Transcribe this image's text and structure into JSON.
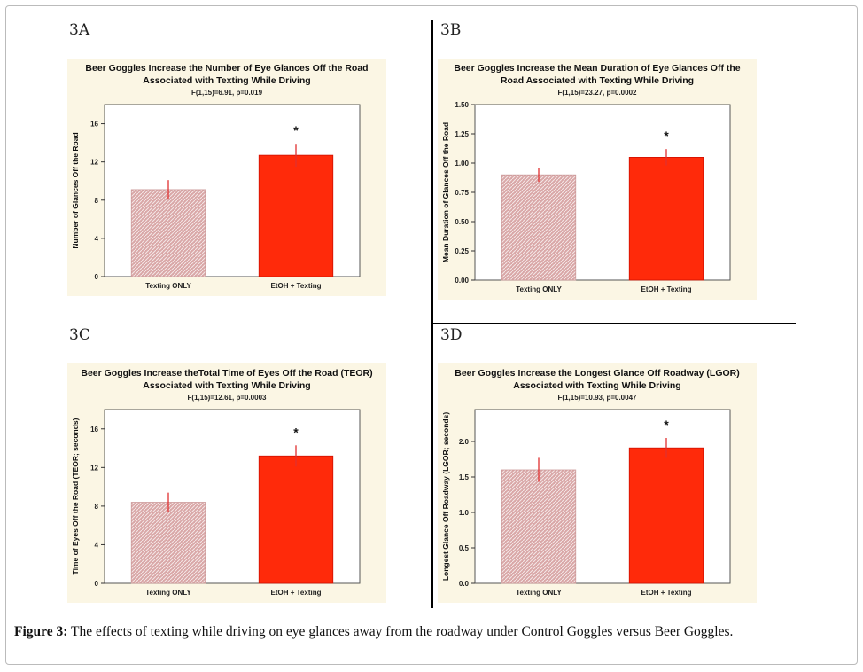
{
  "figure": {
    "caption_label": "Figure 3:",
    "caption_text": " The effects of texting while driving on eye glances away from the roadway under Control Goggles versus Beer Goggles."
  },
  "colors": {
    "panel_bg": "#fbf6e4",
    "control_bar": "#d9a7a7",
    "beer_bar": "#ff2a0a",
    "error_bar": "#e03030"
  },
  "chart_data": [
    {
      "panel": "3A",
      "type": "bar",
      "title_lines": [
        "Beer Goggles Increase the Number of Eye Glances Off the Road",
        "Associated with Texting While Driving"
      ],
      "stat": "F(1,15)=6.91, p=0.019",
      "ylabel": "Number of Glances Off the Road",
      "categories": [
        "Texting ONLY",
        "EtOH + Texting"
      ],
      "values": [
        9.1,
        12.7
      ],
      "errors": [
        1.0,
        1.2
      ],
      "ylim": [
        0,
        18
      ],
      "yticks": [
        0,
        4,
        8,
        12,
        16
      ],
      "tick_labels": [
        "0",
        "4",
        "8",
        "12",
        "16"
      ],
      "annotation": "*"
    },
    {
      "panel": "3B",
      "type": "bar",
      "title_lines": [
        "Beer Goggles Increase the Mean Duration of Eye Glances Off the",
        "Road Associated with Texting While Driving"
      ],
      "stat": "F(1,15)=23.27, p=0.0002",
      "ylabel": "Mean Duration of Glances Off the Road",
      "categories": [
        "Texting ONLY",
        "EtOH + Texting"
      ],
      "values": [
        0.9,
        1.05
      ],
      "errors": [
        0.06,
        0.07
      ],
      "ylim": [
        0,
        1.5
      ],
      "yticks": [
        0,
        0.25,
        0.5,
        0.75,
        1.0,
        1.25,
        1.5
      ],
      "tick_labels": [
        "0.00",
        "0.25",
        "0.50",
        "0.75",
        "1.00",
        "1.25",
        "1.50"
      ],
      "annotation": "*"
    },
    {
      "panel": "3C",
      "type": "bar",
      "title_lines": [
        "Beer Goggles Increase theTotal Time of Eyes Off the Road (TEOR)",
        "Associated with Texting While Driving"
      ],
      "stat": "F(1,15)=12.61, p=0.0003",
      "ylabel": "Time of Eyes Off the Road (TEOR; seconds)",
      "categories": [
        "Texting ONLY",
        "EtOH + Texting"
      ],
      "values": [
        8.4,
        13.2
      ],
      "errors": [
        1.0,
        1.1
      ],
      "ylim": [
        0,
        18
      ],
      "yticks": [
        0,
        4,
        8,
        12,
        16
      ],
      "tick_labels": [
        "0",
        "4",
        "8",
        "12",
        "16"
      ],
      "annotation": "*"
    },
    {
      "panel": "3D",
      "type": "bar",
      "title_lines": [
        "Beer Goggles Increase the Longest Glance Off Roadway (LGOR)",
        "Associated with Texting While Driving"
      ],
      "stat": "F(1,15)=10.93, p=0.0047",
      "ylabel": "Longest Glance Off Roadway (LGOR; seconds)",
      "categories": [
        "Texting ONLY",
        "EtOH + Texting"
      ],
      "values": [
        1.6,
        1.91
      ],
      "errors": [
        0.17,
        0.14
      ],
      "ylim": [
        0,
        2.45
      ],
      "yticks": [
        0,
        0.5,
        1.0,
        1.5,
        2.0
      ],
      "tick_labels": [
        "0.0",
        "0.5",
        "1.0",
        "1.5",
        "2.0"
      ],
      "annotation": "*"
    }
  ]
}
